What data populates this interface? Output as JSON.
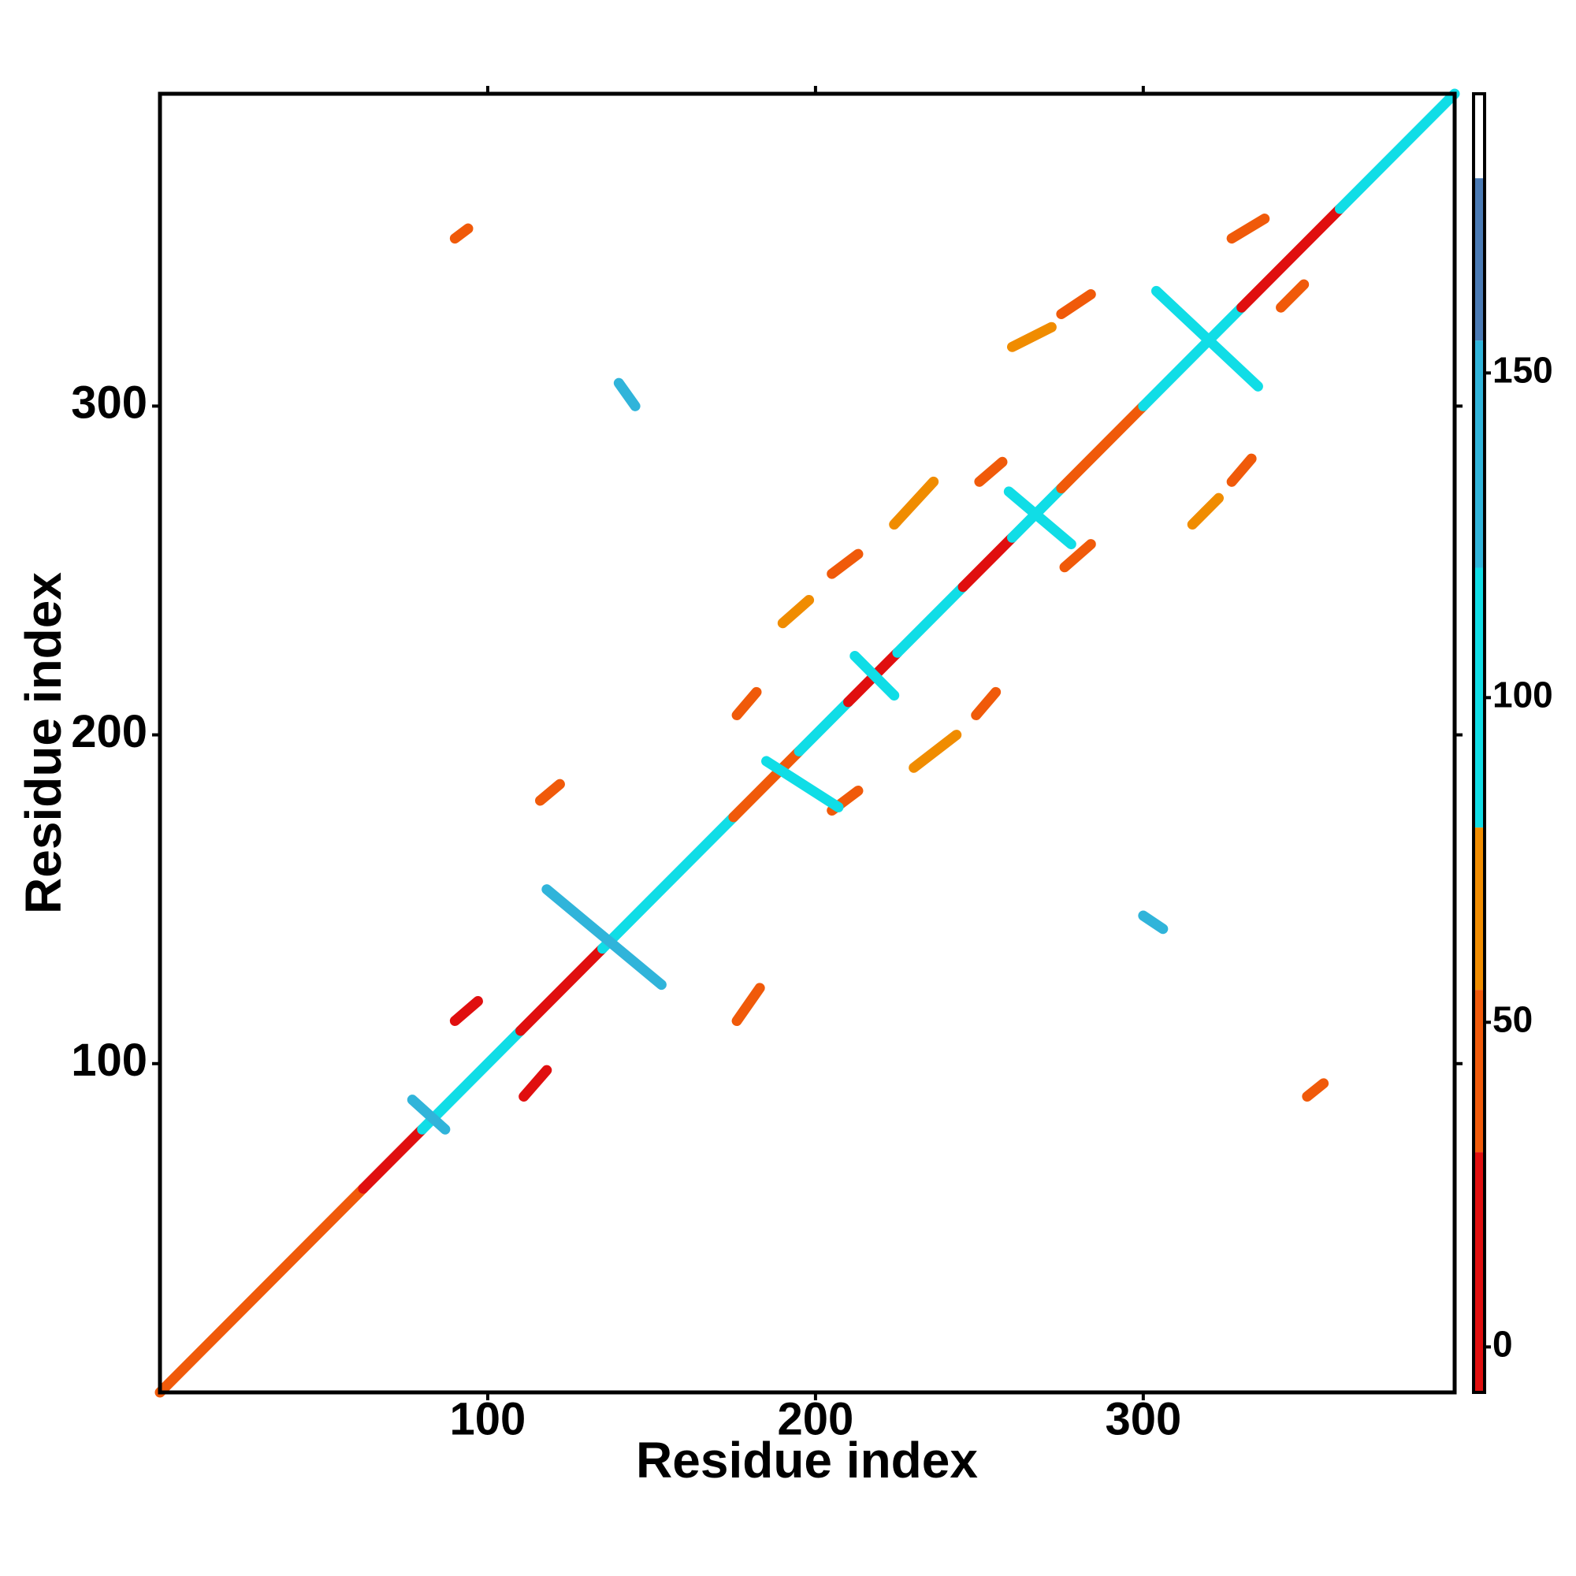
{
  "chart_data": {
    "type": "contact-map",
    "x_label": "Residue index",
    "y_label": "Residue index",
    "xlim": [
      0,
      395
    ],
    "ylim": [
      0,
      395
    ],
    "xticks": [
      100,
      200,
      300
    ],
    "yticks": [
      100,
      200,
      300
    ],
    "colorbar": {
      "lim": [
        -7,
        193
      ],
      "ticks": [
        0,
        50,
        100,
        150
      ],
      "bands": [
        {
          "from": -7,
          "to": 30,
          "color": "#e00f0f"
        },
        {
          "from": 30,
          "to": 55,
          "color": "#f05a0a"
        },
        {
          "from": 55,
          "to": 80,
          "color": "#f08c00"
        },
        {
          "from": 80,
          "to": 120,
          "color": "#10dde6"
        },
        {
          "from": 120,
          "to": 155,
          "color": "#30b4da"
        },
        {
          "from": 155,
          "to": 180,
          "color": "#4a7ab4"
        },
        {
          "from": 180,
          "to": 193,
          "color": "#ffffff"
        }
      ]
    },
    "contacts": [
      {
        "x": [
          0,
          62
        ],
        "y": [
          0,
          62
        ],
        "value": 45
      },
      {
        "x": [
          62,
          80
        ],
        "y": [
          62,
          80
        ],
        "value": 20
      },
      {
        "x": [
          80,
          110
        ],
        "y": [
          80,
          110
        ],
        "value": 95
      },
      {
        "x": [
          110,
          135
        ],
        "y": [
          110,
          135
        ],
        "value": 20
      },
      {
        "x": [
          135,
          175
        ],
        "y": [
          135,
          175
        ],
        "value": 95
      },
      {
        "x": [
          175,
          195
        ],
        "y": [
          175,
          195
        ],
        "value": 45
      },
      {
        "x": [
          195,
          210
        ],
        "y": [
          195,
          210
        ],
        "value": 95
      },
      {
        "x": [
          210,
          225
        ],
        "y": [
          210,
          225
        ],
        "value": 20
      },
      {
        "x": [
          225,
          245
        ],
        "y": [
          225,
          245
        ],
        "value": 95
      },
      {
        "x": [
          245,
          260
        ],
        "y": [
          245,
          260
        ],
        "value": 20
      },
      {
        "x": [
          260,
          275
        ],
        "y": [
          260,
          275
        ],
        "value": 95
      },
      {
        "x": [
          275,
          300
        ],
        "y": [
          275,
          300
        ],
        "value": 45
      },
      {
        "x": [
          300,
          330
        ],
        "y": [
          300,
          330
        ],
        "value": 95
      },
      {
        "x": [
          330,
          360
        ],
        "y": [
          330,
          360
        ],
        "value": 20
      },
      {
        "x": [
          360,
          395
        ],
        "y": [
          360,
          395
        ],
        "value": 95
      },
      {
        "x": [
          116,
          122
        ],
        "y": [
          180,
          185
        ],
        "value": 40
      },
      {
        "x": [
          176,
          183
        ],
        "y": [
          113,
          123
        ],
        "value": 40
      },
      {
        "x": [
          90,
          94
        ],
        "y": [
          351,
          354
        ],
        "value": 40
      },
      {
        "x": [
          176,
          182
        ],
        "y": [
          206,
          213
        ],
        "value": 40
      },
      {
        "x": [
          205,
          213
        ],
        "y": [
          249,
          255
        ],
        "value": 40
      },
      {
        "x": [
          205,
          213
        ],
        "y": [
          177,
          183
        ],
        "value": 40
      },
      {
        "x": [
          249,
          255
        ],
        "y": [
          206,
          213
        ],
        "value": 40
      },
      {
        "x": [
          250,
          257
        ],
        "y": [
          277,
          283
        ],
        "value": 40
      },
      {
        "x": [
          276,
          284
        ],
        "y": [
          251,
          258
        ],
        "value": 40
      },
      {
        "x": [
          275,
          284
        ],
        "y": [
          328,
          334
        ],
        "value": 40
      },
      {
        "x": [
          327,
          333
        ],
        "y": [
          277,
          284
        ],
        "value": 40
      },
      {
        "x": [
          327,
          337
        ],
        "y": [
          351,
          357
        ],
        "value": 40
      },
      {
        "x": [
          342,
          349
        ],
        "y": [
          330,
          337
        ],
        "value": 40
      },
      {
        "x": [
          90,
          97
        ],
        "y": [
          113,
          119
        ],
        "value": 20
      },
      {
        "x": [
          111,
          118
        ],
        "y": [
          90,
          98
        ],
        "value": 20
      },
      {
        "x": [
          350,
          355
        ],
        "y": [
          90,
          94
        ],
        "value": 40
      },
      {
        "x": [
          118,
          153
        ],
        "y": [
          153,
          124
        ],
        "value": 140
      },
      {
        "x": [
          77,
          87
        ],
        "y": [
          89,
          80
        ],
        "value": 140
      },
      {
        "x": [
          140,
          145
        ],
        "y": [
          307,
          300
        ],
        "value": 140
      },
      {
        "x": [
          300,
          306
        ],
        "y": [
          145,
          141
        ],
        "value": 140
      },
      {
        "x": [
          304,
          335
        ],
        "y": [
          335,
          306
        ],
        "value": 95
      },
      {
        "x": [
          212,
          224
        ],
        "y": [
          224,
          212
        ],
        "value": 95
      },
      {
        "x": [
          185,
          207
        ],
        "y": [
          192,
          178
        ],
        "value": 95
      },
      {
        "x": [
          259,
          278
        ],
        "y": [
          274,
          258
        ],
        "value": 95
      },
      {
        "x": [
          190,
          198
        ],
        "y": [
          234,
          241
        ],
        "value": 60
      },
      {
        "x": [
          230,
          243
        ],
        "y": [
          190,
          200
        ],
        "value": 60
      },
      {
        "x": [
          224,
          236
        ],
        "y": [
          264,
          277
        ],
        "value": 60
      },
      {
        "x": [
          315,
          323
        ],
        "y": [
          264,
          272
        ],
        "value": 60
      },
      {
        "x": [
          260,
          272
        ],
        "y": [
          318,
          324
        ],
        "value": 60
      }
    ]
  }
}
